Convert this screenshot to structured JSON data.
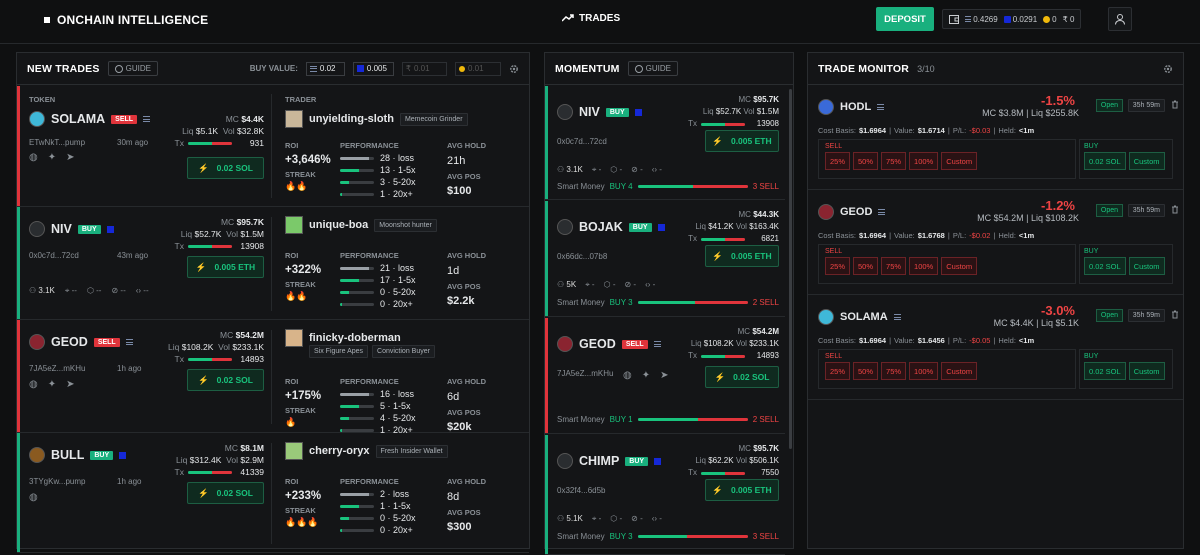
{
  "header": {
    "brand": "ONCHAIN INTELLIGENCE",
    "nav_trades": "TRADES",
    "deposit": "DEPOSIT",
    "wallet": {
      "sol": "0.4269",
      "eth": "0.0291",
      "bnb": "0",
      "other": "0"
    }
  },
  "new_trades": {
    "title": "NEW TRADES",
    "guide": "GUIDE",
    "buy_value_label": "BUY VALUE:",
    "buy_sol": "0.02",
    "buy_eth": "0.005",
    "buy_other1": "0.01",
    "buy_other2": "0.01",
    "col_token": "TOKEN",
    "col_trader": "TRADER",
    "rows": [
      {
        "name": "SOLAMA",
        "side": "SELL",
        "addr": "ETwNkT...pump",
        "age": "30m ago",
        "mc": "$4.4K",
        "liq": "$5.1K",
        "vol": "$32.8K",
        "tx": "931",
        "btn": "0.02 SOL",
        "trader": "unyielding-sloth",
        "tags": [
          "Memecoin Grinder"
        ],
        "roi": "+3,646%",
        "perf": [
          "28 · loss",
          "13 · 1-5x",
          "3 · 5-20x",
          "1 · 20x+"
        ],
        "avg_hold": "21h",
        "avg_pos": "$100",
        "streak": "🔥🔥"
      },
      {
        "name": "NIV",
        "side": "BUY",
        "addr": "0x0c7d...72cd",
        "age": "43m ago",
        "mc": "$95.7K",
        "liq": "$52.7K",
        "vol": "$1.5M",
        "tx": "13908",
        "btn": "0.005 ETH",
        "trader": "unique-boa",
        "tags": [
          "Moonshot hunter"
        ],
        "roi": "+322%",
        "perf": [
          "21 · loss",
          "17 · 1-5x",
          "0 · 5-20x",
          "0 · 20x+"
        ],
        "avg_hold": "1d",
        "avg_pos": "$2.2k",
        "streak": "🔥🔥",
        "holders": "3.1K"
      },
      {
        "name": "GEOD",
        "side": "SELL",
        "addr": "7JA5eZ...mKHu",
        "age": "1h ago",
        "mc": "$54.2M",
        "liq": "$108.2K",
        "vol": "$233.1K",
        "tx": "14893",
        "btn": "0.02 SOL",
        "trader": "finicky-doberman",
        "tags": [
          "Six Figure Apes",
          "Conviction Buyer"
        ],
        "roi": "+175%",
        "perf": [
          "16 · loss",
          "5 · 1-5x",
          "4 · 5-20x",
          "1 · 20x+"
        ],
        "avg_hold": "6d",
        "avg_pos": "$20k",
        "streak": "🔥"
      },
      {
        "name": "BULL",
        "side": "BUY",
        "addr": "3TYgKw...pump",
        "age": "1h ago",
        "mc": "$8.1M",
        "liq": "$312.4K",
        "vol": "$2.9M",
        "tx": "41339",
        "btn": "0.02 SOL",
        "trader": "cherry-oryx",
        "tags": [
          "Fresh Insider Wallet"
        ],
        "roi": "+233%",
        "perf": [
          "2 · loss",
          "1 · 1-5x",
          "0 · 5-20x",
          "0 · 20x+"
        ],
        "avg_hold": "8d",
        "avg_pos": "$300",
        "streak": "🔥🔥🔥"
      }
    ],
    "labels": {
      "roi": "ROI",
      "performance": "PERFORMANCE",
      "avg_hold": "AVG HOLD",
      "avg_pos": "AVG POS",
      "streak": "STREAK",
      "mc": "MC",
      "liq": "Liq",
      "vol": "Vol",
      "tx": "Tx"
    }
  },
  "momentum": {
    "title": "MOMENTUM",
    "guide": "GUIDE",
    "rows": [
      {
        "name": "NIV",
        "side": "BUY",
        "mc": "$95.7K",
        "liq": "$52.7K",
        "vol": "$1.5M",
        "tx": "13908",
        "addr": "0x0c7d...72cd",
        "btn": "0.005 ETH",
        "holders": "3.1K",
        "sm_buy": "BUY 4",
        "sm_sell": "3 SELL"
      },
      {
        "name": "BOJAK",
        "side": "BUY",
        "mc": "$44.3K",
        "liq": "$41.2K",
        "vol": "$163.4K",
        "tx": "6821",
        "addr": "0x66dc...07b8",
        "btn": "0.005 ETH",
        "holders": "5K",
        "sm_buy": "BUY 3",
        "sm_sell": "2 SELL"
      },
      {
        "name": "GEOD",
        "side": "SELL",
        "mc": "$54.2M",
        "liq": "$108.2K",
        "vol": "$233.1K",
        "tx": "14893",
        "addr": "7JA5eZ...mKHu",
        "btn": "0.02 SOL",
        "holders": "",
        "sm_buy": "BUY 1",
        "sm_sell": "2 SELL"
      },
      {
        "name": "CHIMP",
        "side": "BUY",
        "mc": "$95.7K",
        "liq": "$62.2K",
        "vol": "$506.1K",
        "tx": "7550",
        "addr": "0x32f4...6d5b",
        "btn": "0.005 ETH",
        "holders": "5.1K",
        "sm_buy": "BUY 3",
        "sm_sell": "3 SELL"
      }
    ],
    "smart_money": "Smart Money"
  },
  "monitor": {
    "title": "TRADE MONITOR",
    "count": "3/10",
    "rows": [
      {
        "name": "HODL",
        "pct": "-1.5%",
        "status": "Open",
        "time": "35h 59m",
        "mc": "MC $3.8M",
        "liq": "Liq $255.8K",
        "cost": "$1.6964",
        "value": "$1.6714",
        "pl": "-$0.03",
        "held": "<1m"
      },
      {
        "name": "GEOD",
        "pct": "-1.2%",
        "status": "Open",
        "time": "35h 59m",
        "mc": "MC $54.2M",
        "liq": "Liq $108.2K",
        "cost": "$1.6964",
        "value": "$1.6768",
        "pl": "-$0.02",
        "held": "<1m"
      },
      {
        "name": "SOLAMA",
        "pct": "-3.0%",
        "status": "Open",
        "time": "35h 59m",
        "mc": "MC $4.4K",
        "liq": "Liq $5.1K",
        "cost": "$1.6964",
        "value": "$1.6456",
        "pl": "-$0.05",
        "held": "<1m"
      }
    ],
    "labels": {
      "cost": "Cost Basis:",
      "value": "Value:",
      "pl": "P/L:",
      "held": "Held:",
      "sell": "SELL",
      "buy": "BUY",
      "p25": "25%",
      "p50": "50%",
      "p75": "75%",
      "p100": "100%",
      "custom": "Custom",
      "buy_sol": "0.02 SOL"
    }
  }
}
